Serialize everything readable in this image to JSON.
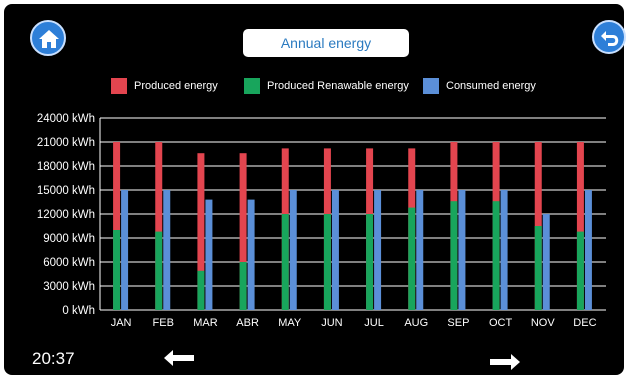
{
  "header": {
    "title": "Annual energy"
  },
  "legend": [
    {
      "label": "Produced energy",
      "color": "#e3454f"
    },
    {
      "label": "Produced Renawable energy",
      "color": "#18a55c"
    },
    {
      "label": "Consumed energy",
      "color": "#5b8fd8"
    }
  ],
  "footer": {
    "time": "20:37"
  },
  "icons": {
    "home": "home-icon",
    "back": "undo-arrow-icon",
    "prev": "arrow-left-icon",
    "next": "arrow-right-icon"
  },
  "chart_data": {
    "type": "bar",
    "categories": [
      "JAN",
      "FEB",
      "MAR",
      "ABR",
      "MAY",
      "JUN",
      "JUL",
      "AUG",
      "SEP",
      "OCT",
      "NOV",
      "DEC"
    ],
    "series": [
      {
        "name": "Produced energy",
        "values": [
          21000,
          21000,
          19600,
          19600,
          20200,
          20200,
          20200,
          20200,
          21000,
          21000,
          21000,
          21000
        ]
      },
      {
        "name": "Produced Renawable energy",
        "values": [
          10000,
          9800,
          4900,
          6000,
          12000,
          12000,
          12000,
          12800,
          13600,
          13600,
          10500,
          9800
        ]
      },
      {
        "name": "Consumed energy",
        "values": [
          15000,
          15000,
          13800,
          13800,
          15000,
          15000,
          15000,
          15000,
          15000,
          15000,
          12000,
          15000
        ]
      }
    ],
    "y_ticks": [
      "0 kWh",
      "3000 kWh",
      "6000 kWh",
      "9000 kWh",
      "12000 kWh",
      "15000 kWh",
      "18000 kWh",
      "21000 kWh",
      "24000 kWh"
    ],
    "ylim": [
      0,
      24000
    ],
    "grid": true,
    "legend_position": "top"
  }
}
